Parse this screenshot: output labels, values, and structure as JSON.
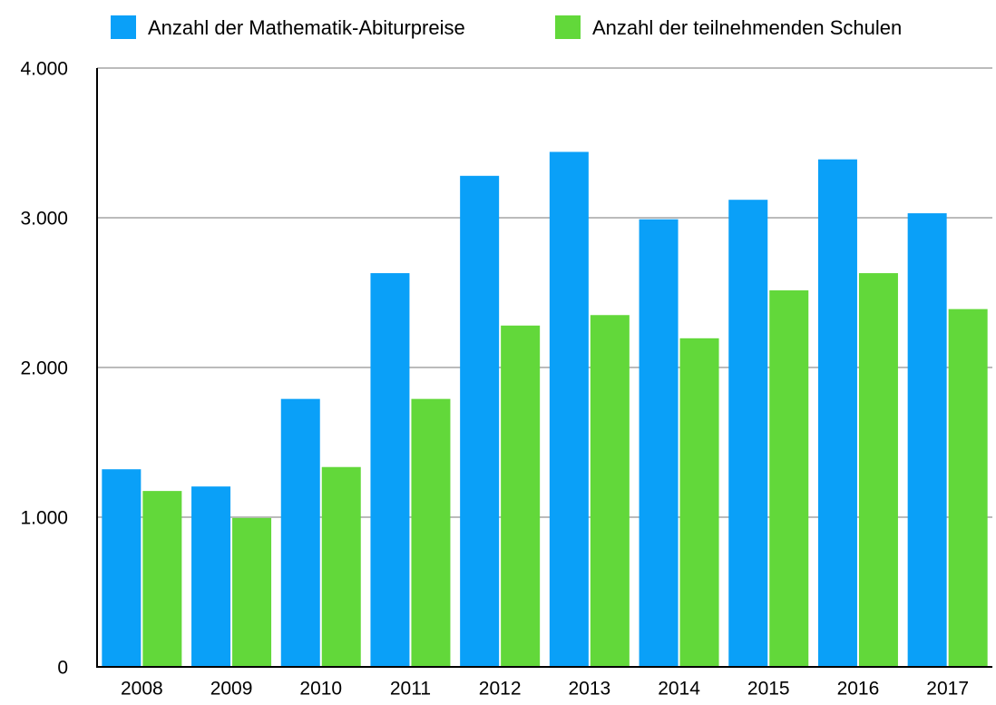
{
  "chart_data": {
    "type": "bar",
    "categories": [
      "2008",
      "2009",
      "2010",
      "2011",
      "2012",
      "2013",
      "2014",
      "2015",
      "2016",
      "2017"
    ],
    "series": [
      {
        "name": "Anzahl der Mathematik-Abiturpreise",
        "color": "#0aa0f8",
        "values": [
          1320,
          1205,
          1790,
          2630,
          3280,
          3440,
          2990,
          3120,
          3390,
          3030
        ]
      },
      {
        "name": "Anzahl der teilnehmenden Schulen",
        "color": "#62d83a",
        "values": [
          1175,
          995,
          1335,
          1790,
          2280,
          2350,
          2195,
          2515,
          2630,
          2390
        ]
      }
    ],
    "ylim": [
      0,
      4000
    ],
    "yticks": [
      0,
      {
        "value": 1000,
        "label": "1.000"
      },
      {
        "value": 2000,
        "label": "2.000"
      },
      {
        "value": 3000,
        "label": "3.000"
      },
      {
        "value": 4000,
        "label": "4.000"
      }
    ],
    "grid": true,
    "legend": "top"
  }
}
